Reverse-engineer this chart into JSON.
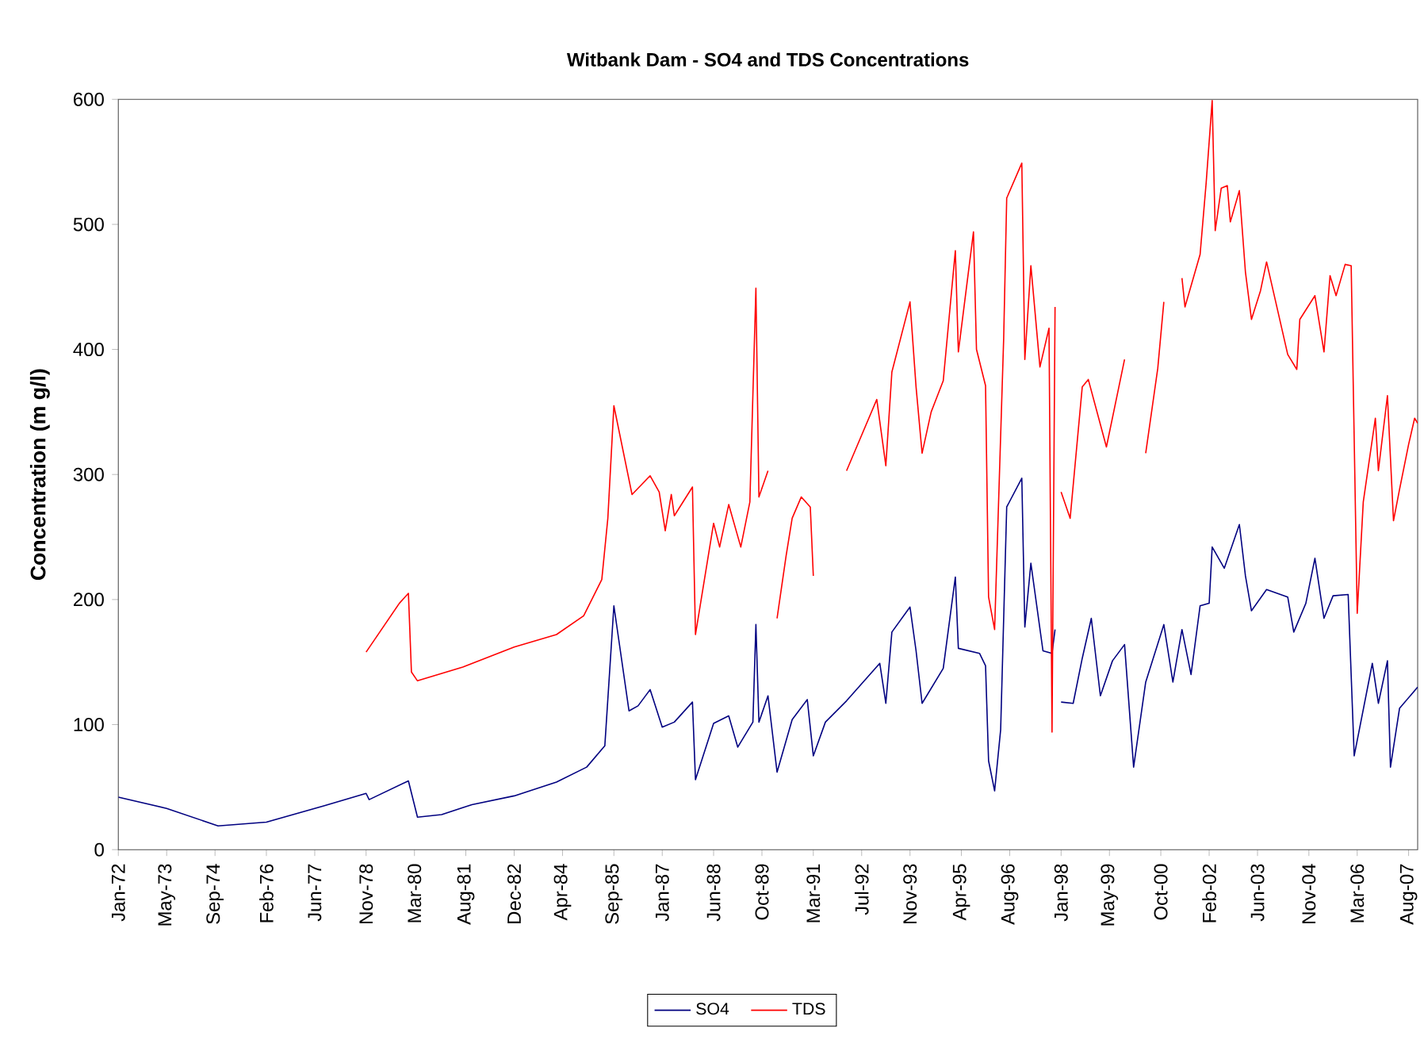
{
  "chart_data": {
    "type": "line",
    "title": "Witbank Dam - SO4 and TDS Concentrations",
    "ylabel": "Concentration (m g/l)",
    "xlim": [
      "1972-01",
      "2007-11"
    ],
    "ylim": [
      0,
      600
    ],
    "yticks": [
      0,
      100,
      200,
      300,
      400,
      500,
      600
    ],
    "xticks": [
      {
        "value": "1972-01",
        "label": "Jan-72"
      },
      {
        "value": "1973-05",
        "label": "May-73"
      },
      {
        "value": "1974-09",
        "label": "Sep-74"
      },
      {
        "value": "1976-02",
        "label": "Feb-76"
      },
      {
        "value": "1977-06",
        "label": "Jun-77"
      },
      {
        "value": "1978-11",
        "label": "Nov-78"
      },
      {
        "value": "1980-03",
        "label": "Mar-80"
      },
      {
        "value": "1981-08",
        "label": "Aug-81"
      },
      {
        "value": "1982-12",
        "label": "Dec-82"
      },
      {
        "value": "1984-04",
        "label": "Apr-84"
      },
      {
        "value": "1985-09",
        "label": "Sep-85"
      },
      {
        "value": "1987-01",
        "label": "Jan-87"
      },
      {
        "value": "1988-06",
        "label": "Jun-88"
      },
      {
        "value": "1989-10",
        "label": "Oct-89"
      },
      {
        "value": "1991-03",
        "label": "Mar-91"
      },
      {
        "value": "1992-07",
        "label": "Jul-92"
      },
      {
        "value": "1993-11",
        "label": "Nov-93"
      },
      {
        "value": "1995-04",
        "label": "Apr-95"
      },
      {
        "value": "1996-08",
        "label": "Aug-96"
      },
      {
        "value": "1998-01",
        "label": "Jan-98"
      },
      {
        "value": "1999-05",
        "label": "May-99"
      },
      {
        "value": "2000-10",
        "label": "Oct-00"
      },
      {
        "value": "2002-02",
        "label": "Feb-02"
      },
      {
        "value": "2003-06",
        "label": "Jun-03"
      },
      {
        "value": "2004-11",
        "label": "Nov-04"
      },
      {
        "value": "2006-03",
        "label": "Mar-06"
      },
      {
        "value": "2007-08",
        "label": "Aug-07"
      }
    ],
    "grid": false,
    "legend": "bottom",
    "marker": "none",
    "line_style": "solid",
    "series": [
      {
        "name": "SO4",
        "color": "#000080",
        "x": [
          "1972-01",
          "1973-05",
          "1974-10",
          "1976-02",
          "1977-09",
          "1978-11",
          "1978-12",
          "1980-01",
          "1980-04",
          "1980-12",
          "1981-10",
          "1982-12",
          "1984-02",
          "1984-12",
          "1985-06",
          "1985-09",
          "1986-02",
          "1986-05",
          "1986-09",
          "1987-01",
          "1987-05",
          "1987-11",
          "1987-12",
          "1988-06",
          "1988-11",
          "1989-02",
          "1989-07",
          "1989-08",
          "1989-09",
          "1989-12",
          "1990-03",
          "1990-08",
          "1991-01",
          "1991-03",
          "1991-07",
          "1992-02",
          "1993-01",
          "1993-03",
          "1993-05",
          "1993-11",
          "1994-01",
          "1994-03",
          "1994-10",
          "1995-02",
          "1995-03",
          "1995-10",
          "1995-12",
          "1996-01",
          "1996-03",
          "1996-05",
          "1996-07",
          "1996-12",
          "1997-01",
          "1997-03",
          "1997-07",
          "1997-10",
          "1997-11",
          "1997-12",
          "1998-01",
          "1998-05",
          "1998-08",
          "1998-11",
          "1999-02",
          "1999-06",
          "1999-10",
          "2000-01",
          "2000-05",
          "2000-11",
          "2001-02",
          "2001-05",
          "2001-08",
          "2001-11",
          "2002-02",
          "2002-03",
          "2002-07",
          "2002-12",
          "2003-02",
          "2003-04",
          "2003-09",
          "2004-04",
          "2004-06",
          "2004-10",
          "2005-01",
          "2005-04",
          "2005-07",
          "2005-12",
          "2006-02",
          "2006-08",
          "2006-10",
          "2007-01",
          "2007-02",
          "2007-05",
          "2007-11"
        ],
        "values": [
          42,
          33,
          19,
          22,
          35,
          45,
          40,
          55,
          26,
          28,
          36,
          43,
          54,
          66,
          83,
          195,
          111,
          115,
          128,
          98,
          102,
          118,
          56,
          101,
          107,
          82,
          102,
          180,
          102,
          123,
          62,
          104,
          120,
          75,
          102,
          119,
          149,
          117,
          174,
          194,
          159,
          117,
          145,
          218,
          161,
          157,
          147,
          71,
          47,
          96,
          274,
          297,
          178,
          229,
          159,
          157,
          176,
          null,
          118,
          117,
          153,
          185,
          123,
          151,
          164,
          66,
          134,
          180,
          134,
          176,
          140,
          195,
          197,
          242,
          225,
          260,
          219,
          191,
          208,
          202,
          174,
          197,
          233,
          185,
          203,
          204,
          75,
          149,
          117,
          151,
          66,
          113,
          130
        ]
      },
      {
        "name": "TDS",
        "color": "#ff0000",
        "x": [
          "1978-11",
          "1979-10",
          "1980-01",
          "1980-02",
          "1980-04",
          "1981-07",
          "1982-12",
          "1984-02",
          "1984-11",
          "1985-05",
          "1985-07",
          "1985-09",
          "1986-03",
          "1986-09",
          "1986-12",
          "1987-02",
          "1987-04",
          "1987-05",
          "1987-11",
          "1987-12",
          "1988-06",
          "1988-08",
          "1988-11",
          "1989-03",
          "1989-06",
          "1989-08",
          "1989-09",
          "1989-12",
          "1990-01",
          "1990-03",
          "1990-06",
          "1990-08",
          "1990-11",
          "1991-02",
          "1991-03",
          "1991-08",
          "1992-02",
          "1992-12",
          "1993-03",
          "1993-05",
          "1993-11",
          "1994-01",
          "1994-03",
          "1994-06",
          "1994-10",
          "1995-02",
          "1995-03",
          "1995-08",
          "1995-09",
          "1995-12",
          "1996-01",
          "1996-03",
          "1996-06",
          "1996-07",
          "1996-12",
          "1997-01",
          "1997-03",
          "1997-06",
          "1997-09",
          "1997-10",
          "1997-11",
          "1997-12",
          "1998-01",
          "1998-04",
          "1998-08",
          "1998-10",
          "1999-04",
          "1999-10",
          "2000-01",
          "2000-05",
          "2000-09",
          "2000-11",
          "2001-02",
          "2001-05",
          "2001-06",
          "2001-11",
          "2002-01",
          "2002-03",
          "2002-04",
          "2002-06",
          "2002-08",
          "2002-09",
          "2002-12",
          "2003-02",
          "2003-04",
          "2003-07",
          "2003-09",
          "2004-04",
          "2004-07",
          "2004-08",
          "2005-01",
          "2005-04",
          "2005-06",
          "2005-08",
          "2005-11",
          "2006-01",
          "2006-03",
          "2006-05",
          "2006-09",
          "2006-10",
          "2007-01",
          "2007-03",
          "2007-05",
          "2007-08",
          "2007-10",
          "2007-11"
        ],
        "values": [
          158,
          197,
          205,
          142,
          135,
          146,
          162,
          172,
          187,
          216,
          265,
          355,
          284,
          299,
          286,
          255,
          284,
          267,
          290,
          172,
          261,
          242,
          276,
          242,
          278,
          449,
          282,
          303,
          null,
          185,
          235,
          265,
          282,
          274,
          219,
          null,
          303,
          360,
          307,
          382,
          438,
          370,
          317,
          350,
          375,
          479,
          398,
          494,
          400,
          371,
          202,
          176,
          409,
          521,
          549,
          392,
          467,
          386,
          417,
          94,
          434,
          null,
          286,
          265,
          370,
          376,
          322,
          392,
          null,
          317,
          385,
          438,
          null,
          457,
          434,
          476,
          533,
          599,
          495,
          529,
          531,
          502,
          527,
          462,
          424,
          447,
          470,
          396,
          384,
          424,
          443,
          398,
          459,
          443,
          468,
          467,
          189,
          278,
          345,
          303,
          363,
          263,
          288,
          324,
          345,
          341
        ]
      }
    ]
  }
}
